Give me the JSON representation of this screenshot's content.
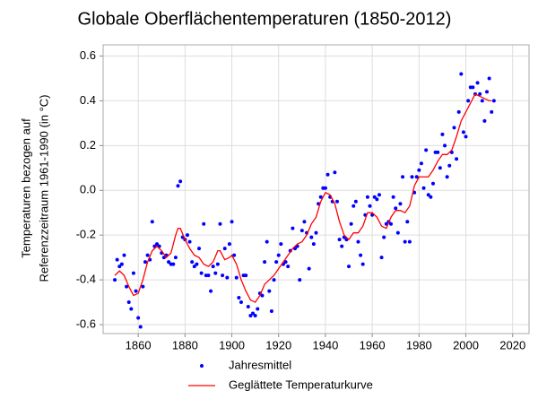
{
  "chart_data": {
    "type": "scatter-line",
    "title": "Globale Oberflächentemperaturen (1850-2012)",
    "ylabel": [
      "Temperaturen bezogen auf",
      "Referenzzeitraum 1961-1990 (in °C)"
    ],
    "xlim": [
      1845,
      2027
    ],
    "ylim": [
      -0.64,
      0.65
    ],
    "xticks": [
      1860,
      1880,
      1900,
      1920,
      1940,
      1960,
      1980,
      2000,
      2020
    ],
    "yticks": [
      -0.6,
      -0.4,
      -0.2,
      {
        "value": 0,
        "label": "0.0"
      },
      0.2,
      0.4,
      0.6
    ],
    "grid": true,
    "legend": "bottom",
    "series": [
      {
        "name": "Jahresmittel",
        "color": "#0000ff",
        "style": "dots",
        "x": [
          1850,
          1851,
          1852,
          1853,
          1854,
          1855,
          1856,
          1857,
          1858,
          1859,
          1860,
          1861,
          1862,
          1863,
          1864,
          1865,
          1866,
          1867,
          1868,
          1869,
          1870,
          1871,
          1872,
          1873,
          1874,
          1875,
          1876,
          1877,
          1878,
          1879,
          1880,
          1881,
          1882,
          1883,
          1884,
          1885,
          1886,
          1887,
          1888,
          1889,
          1890,
          1891,
          1892,
          1893,
          1894,
          1895,
          1896,
          1897,
          1898,
          1899,
          1900,
          1901,
          1902,
          1903,
          1904,
          1905,
          1906,
          1907,
          1908,
          1909,
          1910,
          1911,
          1912,
          1913,
          1914,
          1915,
          1916,
          1917,
          1918,
          1919,
          1920,
          1921,
          1922,
          1923,
          1924,
          1925,
          1926,
          1927,
          1928,
          1929,
          1930,
          1931,
          1932,
          1933,
          1934,
          1935,
          1936,
          1937,
          1938,
          1939,
          1940,
          1941,
          1942,
          1943,
          1944,
          1945,
          1946,
          1947,
          1948,
          1949,
          1950,
          1951,
          1952,
          1953,
          1954,
          1955,
          1956,
          1957,
          1958,
          1959,
          1960,
          1961,
          1962,
          1963,
          1964,
          1965,
          1966,
          1967,
          1968,
          1969,
          1970,
          1971,
          1972,
          1973,
          1974,
          1975,
          1976,
          1977,
          1978,
          1979,
          1980,
          1981,
          1982,
          1983,
          1984,
          1985,
          1986,
          1987,
          1988,
          1989,
          1990,
          1991,
          1992,
          1993,
          1994,
          1995,
          1996,
          1997,
          1998,
          1999,
          2000,
          2001,
          2002,
          2003,
          2004,
          2005,
          2006,
          2007,
          2008,
          2009,
          2010,
          2011,
          2012
        ],
        "values": [
          -0.4,
          -0.31,
          -0.34,
          -0.33,
          -0.29,
          -0.43,
          -0.5,
          -0.53,
          -0.37,
          -0.45,
          -0.57,
          -0.61,
          -0.43,
          -0.32,
          -0.29,
          -0.31,
          -0.14,
          -0.25,
          -0.24,
          -0.25,
          -0.28,
          -0.3,
          -0.29,
          -0.32,
          -0.33,
          -0.33,
          -0.3,
          0.02,
          0.04,
          -0.21,
          -0.22,
          -0.2,
          -0.23,
          -0.32,
          -0.34,
          -0.33,
          -0.26,
          -0.37,
          -0.15,
          -0.38,
          -0.38,
          -0.45,
          -0.34,
          -0.37,
          -0.33,
          -0.15,
          -0.38,
          -0.26,
          -0.39,
          -0.24,
          -0.14,
          -0.29,
          -0.39,
          -0.48,
          -0.5,
          -0.38,
          -0.38,
          -0.52,
          -0.56,
          -0.55,
          -0.56,
          -0.53,
          -0.46,
          -0.47,
          -0.32,
          -0.23,
          -0.45,
          -0.54,
          -0.4,
          -0.32,
          -0.29,
          -0.24,
          -0.33,
          -0.32,
          -0.34,
          -0.27,
          -0.17,
          -0.26,
          -0.25,
          -0.4,
          -0.18,
          -0.14,
          -0.19,
          -0.35,
          -0.21,
          -0.24,
          -0.19,
          -0.06,
          -0.03,
          0.01,
          0.01,
          0.07,
          -0.03,
          -0.05,
          0.08,
          -0.05,
          -0.22,
          -0.25,
          -0.21,
          -0.22,
          -0.34,
          -0.15,
          -0.07,
          -0.05,
          -0.23,
          -0.29,
          -0.33,
          -0.11,
          -0.03,
          -0.07,
          -0.11,
          -0.03,
          -0.04,
          -0.02,
          -0.3,
          -0.21,
          -0.15,
          -0.14,
          -0.15,
          -0.03,
          -0.08,
          -0.19,
          -0.06,
          0.06,
          -0.23,
          -0.14,
          -0.23,
          0.06,
          -0.01,
          0.06,
          0.09,
          0.12,
          0.01,
          0.18,
          -0.02,
          -0.03,
          0.03,
          0.17,
          0.17,
          0.1,
          0.25,
          0.2,
          0.06,
          0.11,
          0.17,
          0.28,
          0.14,
          0.35,
          0.52,
          0.26,
          0.24,
          0.4,
          0.46,
          0.46,
          0.43,
          0.48,
          0.43,
          0.4,
          0.31,
          0.44,
          0.5,
          0.35,
          0.4
        ]
      },
      {
        "name": "Geglättete Temperaturkurve",
        "color": "#ff0000",
        "style": "line",
        "x": [
          1850,
          1852,
          1854,
          1856,
          1858,
          1860,
          1862,
          1864,
          1866,
          1868,
          1870,
          1872,
          1874,
          1876,
          1877,
          1878,
          1880,
          1882,
          1884,
          1886,
          1888,
          1890,
          1892,
          1894,
          1895,
          1897,
          1899,
          1900,
          1902,
          1904,
          1906,
          1908,
          1910,
          1912,
          1914,
          1916,
          1918,
          1920,
          1922,
          1924,
          1926,
          1928,
          1930,
          1932,
          1934,
          1936,
          1938,
          1940,
          1942,
          1944,
          1946,
          1948,
          1950,
          1952,
          1954,
          1956,
          1958,
          1960,
          1962,
          1964,
          1966,
          1968,
          1970,
          1972,
          1974,
          1976,
          1978,
          1980,
          1982,
          1984,
          1986,
          1988,
          1990,
          1992,
          1994,
          1996,
          1998,
          2000,
          2002,
          2004,
          2006,
          2008,
          2010,
          2011
        ],
        "values": [
          -0.38,
          -0.36,
          -0.38,
          -0.43,
          -0.47,
          -0.46,
          -0.4,
          -0.32,
          -0.27,
          -0.25,
          -0.27,
          -0.3,
          -0.28,
          -0.2,
          -0.17,
          -0.17,
          -0.22,
          -0.26,
          -0.29,
          -0.3,
          -0.33,
          -0.34,
          -0.32,
          -0.27,
          -0.27,
          -0.31,
          -0.3,
          -0.29,
          -0.33,
          -0.4,
          -0.45,
          -0.49,
          -0.5,
          -0.47,
          -0.42,
          -0.4,
          -0.38,
          -0.35,
          -0.32,
          -0.29,
          -0.26,
          -0.24,
          -0.23,
          -0.2,
          -0.15,
          -0.12,
          -0.05,
          -0.01,
          -0.02,
          -0.06,
          -0.14,
          -0.2,
          -0.22,
          -0.19,
          -0.19,
          -0.16,
          -0.1,
          -0.1,
          -0.12,
          -0.16,
          -0.17,
          -0.12,
          -0.09,
          -0.09,
          -0.1,
          -0.07,
          0.02,
          0.06,
          0.06,
          0.06,
          0.09,
          0.13,
          0.16,
          0.16,
          0.18,
          0.24,
          0.31,
          0.35,
          0.39,
          0.43,
          0.42,
          0.41,
          0.4,
          0.4
        ]
      }
    ]
  }
}
